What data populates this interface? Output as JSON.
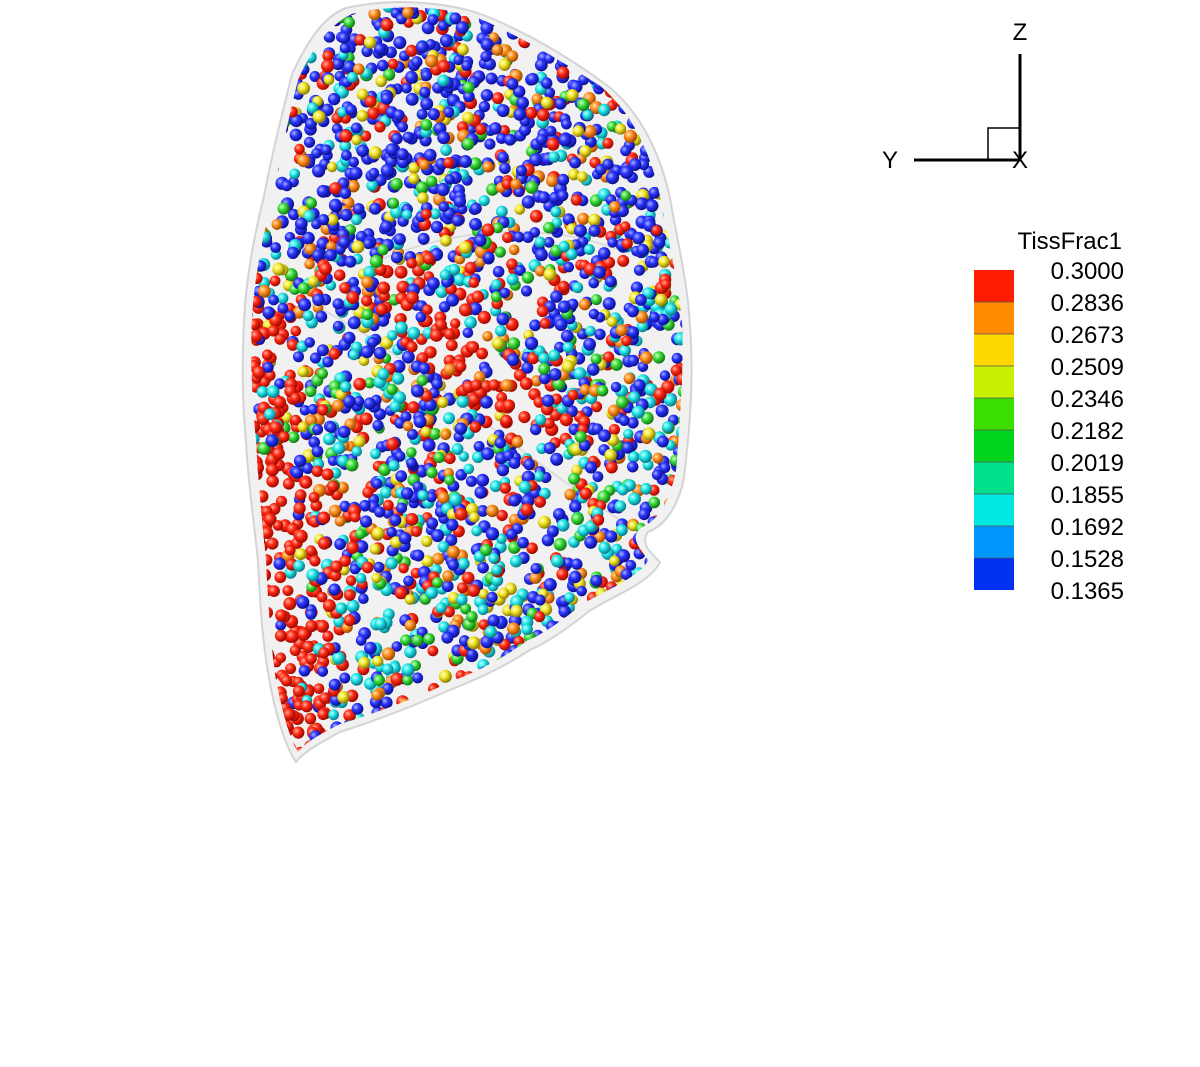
{
  "axes": {
    "z_label": "Z",
    "y_label": "Y",
    "x_label": "X"
  },
  "legend": {
    "title": "TissFrac1",
    "ticks": [
      "0.3000",
      "0.2836",
      "0.2673",
      "0.2509",
      "0.2346",
      "0.2182",
      "0.2019",
      "0.1855",
      "0.1692",
      "0.1528",
      "0.1365"
    ],
    "colors": [
      "#ff1c00",
      "#ff8c00",
      "#ffd800",
      "#c8f000",
      "#3ce000",
      "#00d61e",
      "#00e08c",
      "#00e8e0",
      "#0098ff",
      "#0030f0"
    ]
  },
  "palette": {
    "background": "#ffffff",
    "lung_shell": "#dcdcdc",
    "sphere_red": "#e01c1c",
    "sphere_blue": "#2a2ee6",
    "sphere_cyan": "#1ee0e0",
    "sphere_green": "#3cd83c",
    "sphere_yellow": "#f0e020",
    "sphere_orange": "#ff8c1e"
  }
}
